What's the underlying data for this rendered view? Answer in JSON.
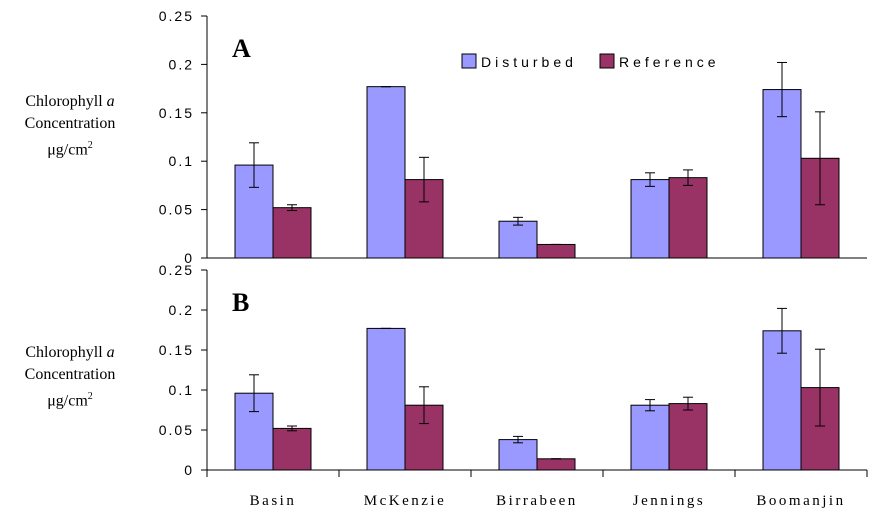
{
  "colors": {
    "disturbed": "#9999ff",
    "reference": "#993366",
    "axis": "#000000"
  },
  "legend": [
    "Disturbed",
    "Reference"
  ],
  "ylabel": {
    "line1_prefix": "Chlorophyll ",
    "line1_italic": "a",
    "line2": "Concentration",
    "line3_unit": "μg/cm",
    "line3_sup": "2"
  },
  "chart_data": [
    {
      "type": "bar",
      "panel_label": "A",
      "categories": [
        "Basin",
        "McKenzie",
        "Birrabeen",
        "Jennings",
        "Boomanjin"
      ],
      "series": [
        {
          "name": "Disturbed",
          "values": [
            0.096,
            0.177,
            0.038,
            0.081,
            0.174
          ],
          "errors": [
            0.023,
            0.0,
            0.004,
            0.007,
            0.028
          ]
        },
        {
          "name": "Reference",
          "values": [
            0.052,
            0.081,
            0.014,
            0.083,
            0.103
          ],
          "errors": [
            0.003,
            0.023,
            0.0,
            0.008,
            0.048
          ]
        }
      ],
      "ylim": [
        0,
        0.25
      ],
      "yticks": [
        "0",
        "0.05",
        "0.1",
        "0.15",
        "0.2",
        "0.25"
      ],
      "legend_position": "top-center"
    },
    {
      "type": "bar",
      "panel_label": "B",
      "categories": [
        "Basin",
        "McKenzie",
        "Birrabeen",
        "Jennings",
        "Boomanjin"
      ],
      "series": [
        {
          "name": "Disturbed",
          "values": [
            0.096,
            0.177,
            0.038,
            0.081,
            0.174
          ],
          "errors": [
            0.023,
            0.0,
            0.004,
            0.007,
            0.028
          ]
        },
        {
          "name": "Reference",
          "values": [
            0.052,
            0.081,
            0.014,
            0.083,
            0.103
          ],
          "errors": [
            0.003,
            0.023,
            0.0,
            0.008,
            0.048
          ]
        }
      ],
      "ylim": [
        0,
        0.25
      ],
      "yticks": [
        "0",
        "0.05",
        "0.1",
        "0.15",
        "0.2",
        "0.25"
      ]
    }
  ]
}
